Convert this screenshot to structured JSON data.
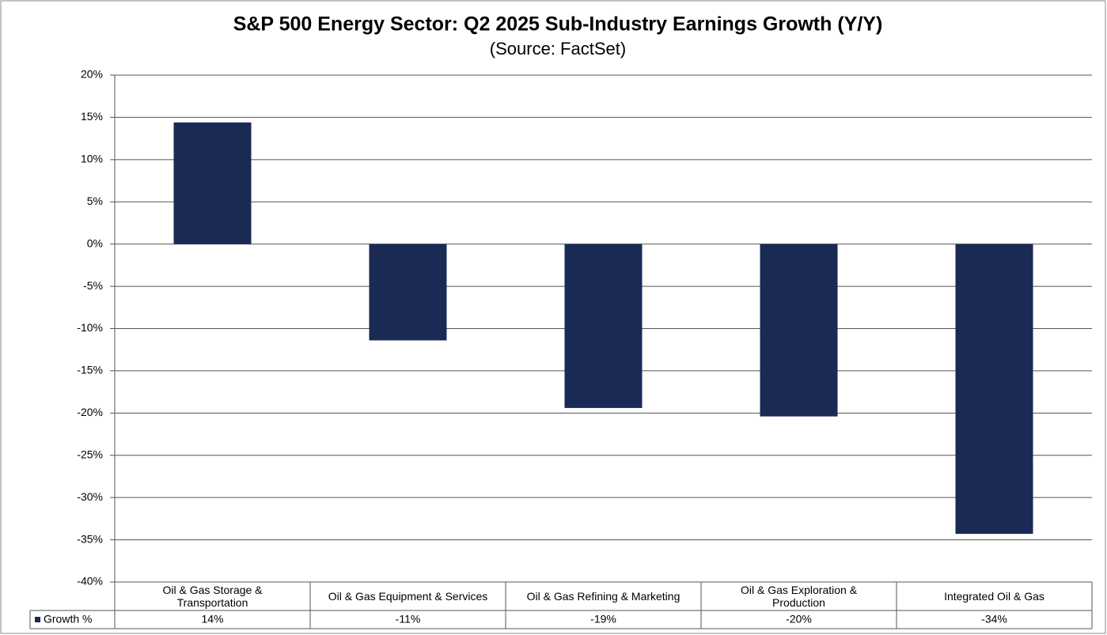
{
  "chart_data": {
    "type": "bar",
    "title": "S&P 500 Energy Sector: Q2 2025 Sub-Industry Earnings Growth (Y/Y)",
    "subtitle": "(Source: FactSet)",
    "categories": [
      "Oil & Gas Storage & Transportation",
      "Oil & Gas Equipment & Services",
      "Oil & Gas Refining & Marketing",
      "Oil & Gas Exploration & Production",
      "Integrated Oil & Gas"
    ],
    "series": [
      {
        "name": "Growth %",
        "color": "#1a2a55",
        "values": [
          14.4,
          -11.4,
          -19.4,
          -20.4,
          -34.3
        ],
        "value_labels": [
          "14%",
          "-11%",
          "-19%",
          "-20%",
          "-34%"
        ]
      }
    ],
    "ylim": [
      -40,
      20
    ],
    "yticks": [
      {
        "value": 20,
        "label": "20%"
      },
      {
        "value": 15,
        "label": "15%"
      },
      {
        "value": 10,
        "label": "10%"
      },
      {
        "value": 5,
        "label": "5%"
      },
      {
        "value": 0,
        "label": "0%"
      },
      {
        "value": -5,
        "label": "-5%"
      },
      {
        "value": -10,
        "label": "-10%"
      },
      {
        "value": -15,
        "label": "-15%"
      },
      {
        "value": -20,
        "label": "-20%"
      },
      {
        "value": -25,
        "label": "-25%"
      },
      {
        "value": -30,
        "label": "-30%"
      },
      {
        "value": -35,
        "label": "-35%"
      },
      {
        "value": -40,
        "label": "-40%"
      }
    ],
    "grid": true
  }
}
